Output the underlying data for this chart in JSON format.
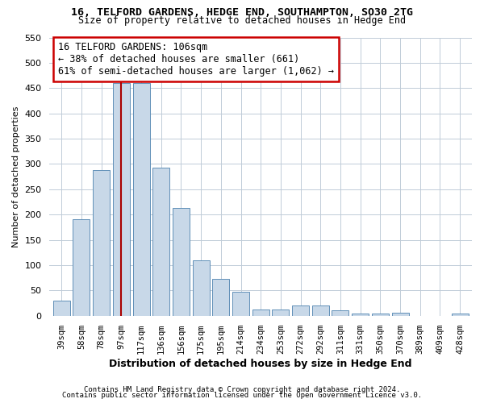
{
  "title1": "16, TELFORD GARDENS, HEDGE END, SOUTHAMPTON, SO30 2TG",
  "title2": "Size of property relative to detached houses in Hedge End",
  "xlabel": "Distribution of detached houses by size in Hedge End",
  "ylabel": "Number of detached properties",
  "bar_labels": [
    "39sqm",
    "58sqm",
    "78sqm",
    "97sqm",
    "117sqm",
    "136sqm",
    "156sqm",
    "175sqm",
    "195sqm",
    "214sqm",
    "234sqm",
    "253sqm",
    "272sqm",
    "292sqm",
    "311sqm",
    "331sqm",
    "350sqm",
    "370sqm",
    "389sqm",
    "409sqm",
    "428sqm"
  ],
  "bar_values": [
    30,
    190,
    288,
    460,
    460,
    293,
    213,
    110,
    73,
    48,
    13,
    13,
    20,
    20,
    10,
    5,
    5,
    6,
    0,
    0,
    5
  ],
  "bar_color": "#c8d8e8",
  "bar_edge_color": "#6090b8",
  "vline_x": 3,
  "vline_color": "#aa0000",
  "annotation_text": "16 TELFORD GARDENS: 106sqm\n← 38% of detached houses are smaller (661)\n61% of semi-detached houses are larger (1,062) →",
  "annotation_box_color": "#cc0000",
  "ylim": [
    0,
    550
  ],
  "yticks": [
    0,
    50,
    100,
    150,
    200,
    250,
    300,
    350,
    400,
    450,
    500,
    550
  ],
  "footer1": "Contains HM Land Registry data © Crown copyright and database right 2024.",
  "footer2": "Contains public sector information licensed under the Open Government Licence v3.0.",
  "bg_color": "#ffffff",
  "grid_color": "#c0ccd8"
}
